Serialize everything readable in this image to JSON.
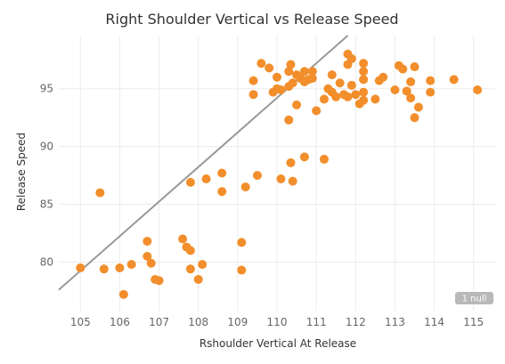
{
  "chart_data": {
    "type": "scatter",
    "title": "Right Shoulder Vertical vs Release Speed",
    "xlabel": "Rshoulder Vertical At Release",
    "ylabel": "Release Speed",
    "xlim": [
      104.45,
      115.55
    ],
    "ylim": [
      75.8,
      99.6
    ],
    "x_ticks": [
      105,
      106,
      107,
      108,
      109,
      110,
      111,
      112,
      113,
      114,
      115
    ],
    "y_ticks": [
      80,
      85,
      90,
      95
    ],
    "grid": true,
    "null_badge": "1 null",
    "colors": {
      "point": "#f28e2b",
      "trend": "#999999",
      "grid": "#ececec",
      "badge": "#b9b9b9"
    },
    "trend_line": {
      "x1": 104.45,
      "y1": 77.6,
      "x2": 111.8,
      "y2": 99.6
    },
    "points": [
      [
        105.0,
        79.5
      ],
      [
        105.5,
        86.0
      ],
      [
        105.6,
        79.4
      ],
      [
        106.0,
        79.5
      ],
      [
        106.1,
        77.2
      ],
      [
        106.3,
        79.8
      ],
      [
        106.7,
        81.8
      ],
      [
        106.7,
        80.5
      ],
      [
        106.8,
        79.9
      ],
      [
        106.9,
        78.5
      ],
      [
        107.0,
        78.4
      ],
      [
        107.6,
        82.0
      ],
      [
        107.7,
        81.3
      ],
      [
        107.8,
        81.0
      ],
      [
        107.8,
        86.9
      ],
      [
        107.8,
        79.4
      ],
      [
        108.0,
        78.5
      ],
      [
        108.1,
        79.8
      ],
      [
        108.2,
        87.2
      ],
      [
        108.6,
        86.1
      ],
      [
        108.6,
        87.7
      ],
      [
        109.1,
        81.7
      ],
      [
        109.1,
        79.3
      ],
      [
        109.2,
        86.5
      ],
      [
        109.4,
        95.7
      ],
      [
        109.4,
        94.5
      ],
      [
        109.5,
        87.5
      ],
      [
        109.6,
        97.2
      ],
      [
        109.8,
        96.8
      ],
      [
        109.9,
        94.7
      ],
      [
        110.0,
        95.0
      ],
      [
        110.0,
        96.0
      ],
      [
        110.1,
        94.9
      ],
      [
        110.1,
        87.2
      ],
      [
        110.3,
        96.5
      ],
      [
        110.3,
        95.2
      ],
      [
        110.3,
        92.3
      ],
      [
        110.35,
        97.1
      ],
      [
        110.35,
        88.6
      ],
      [
        110.4,
        95.5
      ],
      [
        110.4,
        87.0
      ],
      [
        110.5,
        96.2
      ],
      [
        110.5,
        93.6
      ],
      [
        110.6,
        95.9
      ],
      [
        110.7,
        96.5
      ],
      [
        110.7,
        95.6
      ],
      [
        110.7,
        89.1
      ],
      [
        110.8,
        95.8
      ],
      [
        110.9,
        96.5
      ],
      [
        110.9,
        95.9
      ],
      [
        111.0,
        93.1
      ],
      [
        111.2,
        88.9
      ],
      [
        111.2,
        94.1
      ],
      [
        111.3,
        95.0
      ],
      [
        111.4,
        94.7
      ],
      [
        111.4,
        96.2
      ],
      [
        111.5,
        94.3
      ],
      [
        111.6,
        95.5
      ],
      [
        111.7,
        94.5
      ],
      [
        111.8,
        98.0
      ],
      [
        111.8,
        97.1
      ],
      [
        111.8,
        94.3
      ],
      [
        111.9,
        97.6
      ],
      [
        111.9,
        95.3
      ],
      [
        112.0,
        94.5
      ],
      [
        112.1,
        93.7
      ],
      [
        112.2,
        97.2
      ],
      [
        112.2,
        96.5
      ],
      [
        112.2,
        95.8
      ],
      [
        112.2,
        94.7
      ],
      [
        112.2,
        94.0
      ],
      [
        112.5,
        94.1
      ],
      [
        112.6,
        95.7
      ],
      [
        112.7,
        96.0
      ],
      [
        113.0,
        94.9
      ],
      [
        113.1,
        97.0
      ],
      [
        113.2,
        96.7
      ],
      [
        113.3,
        94.8
      ],
      [
        113.4,
        95.6
      ],
      [
        113.4,
        94.2
      ],
      [
        113.5,
        96.9
      ],
      [
        113.5,
        92.5
      ],
      [
        113.6,
        93.4
      ],
      [
        113.9,
        94.7
      ],
      [
        113.9,
        95.7
      ],
      [
        114.5,
        95.8
      ],
      [
        115.1,
        94.9
      ]
    ]
  }
}
